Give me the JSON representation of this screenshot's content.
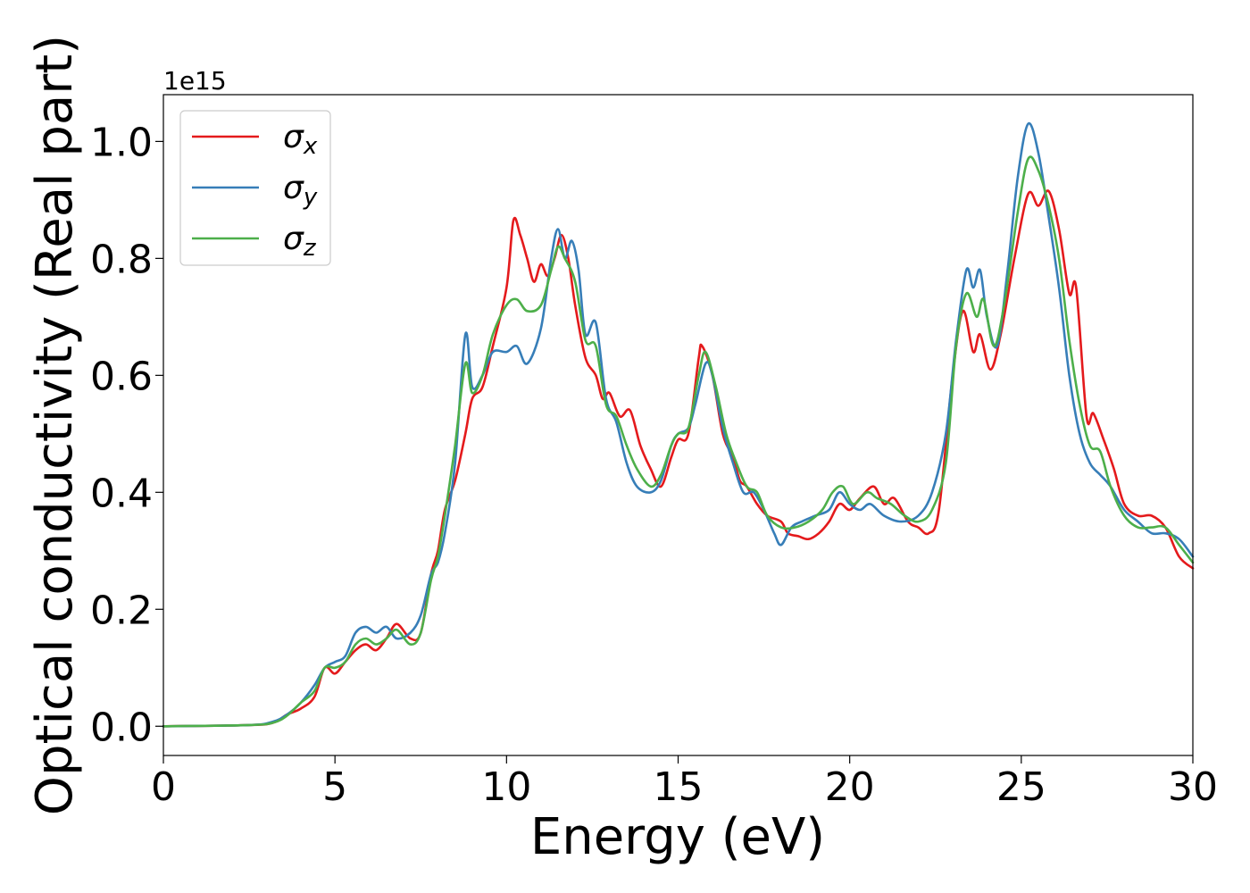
{
  "chart_data": {
    "type": "line",
    "xlabel": "Energy (eV)",
    "ylabel": "Optical conductivity (Real part)",
    "y_offset_text": "1e15",
    "xlim": [
      0,
      30
    ],
    "ylim": [
      -0.05,
      1.08
    ],
    "y_scale_note": "values in units of 1e15",
    "x_ticks": [
      0,
      5,
      10,
      15,
      20,
      25,
      30
    ],
    "x_tick_labels": [
      "0",
      "5",
      "10",
      "15",
      "20",
      "25",
      "30"
    ],
    "y_ticks": [
      0.0,
      0.2,
      0.4,
      0.6,
      0.8,
      1.0
    ],
    "y_tick_labels": [
      "0.0",
      "0.2",
      "0.4",
      "0.6",
      "0.8",
      "1.0"
    ],
    "grid": false,
    "legend_position": "top-left",
    "series": [
      {
        "name": "σx",
        "base": "σ",
        "sub": "x",
        "color": "#e41a1c",
        "points": [
          [
            0,
            0
          ],
          [
            2.5,
            0.002
          ],
          [
            3.2,
            0.006
          ],
          [
            3.6,
            0.02
          ],
          [
            4.0,
            0.03
          ],
          [
            4.4,
            0.05
          ],
          [
            4.7,
            0.1
          ],
          [
            5.0,
            0.09
          ],
          [
            5.3,
            0.11
          ],
          [
            5.6,
            0.13
          ],
          [
            5.9,
            0.14
          ],
          [
            6.2,
            0.13
          ],
          [
            6.5,
            0.15
          ],
          [
            6.8,
            0.175
          ],
          [
            7.2,
            0.15
          ],
          [
            7.5,
            0.16
          ],
          [
            7.8,
            0.26
          ],
          [
            8.0,
            0.3
          ],
          [
            8.2,
            0.37
          ],
          [
            8.5,
            0.42
          ],
          [
            8.8,
            0.5
          ],
          [
            9.0,
            0.56
          ],
          [
            9.3,
            0.58
          ],
          [
            9.6,
            0.65
          ],
          [
            10.0,
            0.75
          ],
          [
            10.2,
            0.865
          ],
          [
            10.4,
            0.84
          ],
          [
            10.6,
            0.8
          ],
          [
            10.8,
            0.76
          ],
          [
            11.0,
            0.79
          ],
          [
            11.2,
            0.77
          ],
          [
            11.4,
            0.8
          ],
          [
            11.6,
            0.84
          ],
          [
            11.8,
            0.8
          ],
          [
            12.0,
            0.72
          ],
          [
            12.3,
            0.63
          ],
          [
            12.6,
            0.6
          ],
          [
            12.8,
            0.56
          ],
          [
            13.0,
            0.57
          ],
          [
            13.3,
            0.53
          ],
          [
            13.6,
            0.54
          ],
          [
            13.9,
            0.48
          ],
          [
            14.2,
            0.44
          ],
          [
            14.5,
            0.41
          ],
          [
            14.8,
            0.46
          ],
          [
            15.0,
            0.49
          ],
          [
            15.3,
            0.5
          ],
          [
            15.6,
            0.63
          ],
          [
            15.7,
            0.65
          ],
          [
            16.0,
            0.6
          ],
          [
            16.3,
            0.5
          ],
          [
            16.6,
            0.46
          ],
          [
            16.8,
            0.42
          ],
          [
            17.0,
            0.41
          ],
          [
            17.3,
            0.38
          ],
          [
            17.6,
            0.36
          ],
          [
            18.0,
            0.35
          ],
          [
            18.2,
            0.33
          ],
          [
            18.5,
            0.325
          ],
          [
            18.8,
            0.32
          ],
          [
            19.1,
            0.33
          ],
          [
            19.4,
            0.35
          ],
          [
            19.7,
            0.38
          ],
          [
            20.0,
            0.37
          ],
          [
            20.3,
            0.39
          ],
          [
            20.7,
            0.41
          ],
          [
            21.0,
            0.38
          ],
          [
            21.3,
            0.39
          ],
          [
            21.7,
            0.35
          ],
          [
            22.0,
            0.34
          ],
          [
            22.3,
            0.33
          ],
          [
            22.6,
            0.37
          ],
          [
            23.0,
            0.6
          ],
          [
            23.3,
            0.71
          ],
          [
            23.6,
            0.64
          ],
          [
            23.8,
            0.67
          ],
          [
            24.1,
            0.61
          ],
          [
            24.4,
            0.67
          ],
          [
            24.8,
            0.8
          ],
          [
            25.2,
            0.91
          ],
          [
            25.5,
            0.89
          ],
          [
            25.8,
            0.915
          ],
          [
            26.1,
            0.85
          ],
          [
            26.4,
            0.74
          ],
          [
            26.6,
            0.75
          ],
          [
            26.9,
            0.53
          ],
          [
            27.1,
            0.535
          ],
          [
            27.4,
            0.49
          ],
          [
            27.7,
            0.44
          ],
          [
            28.0,
            0.38
          ],
          [
            28.4,
            0.36
          ],
          [
            28.8,
            0.36
          ],
          [
            29.2,
            0.34
          ],
          [
            29.6,
            0.29
          ],
          [
            30,
            0.27
          ]
        ]
      },
      {
        "name": "σy",
        "base": "σ",
        "sub": "y",
        "color": "#377eb8",
        "points": [
          [
            0,
            0
          ],
          [
            2.5,
            0.002
          ],
          [
            3.2,
            0.008
          ],
          [
            3.6,
            0.02
          ],
          [
            4.0,
            0.04
          ],
          [
            4.4,
            0.07
          ],
          [
            4.7,
            0.1
          ],
          [
            5.0,
            0.11
          ],
          [
            5.3,
            0.12
          ],
          [
            5.6,
            0.16
          ],
          [
            5.9,
            0.17
          ],
          [
            6.2,
            0.16
          ],
          [
            6.5,
            0.17
          ],
          [
            6.8,
            0.15
          ],
          [
            7.2,
            0.16
          ],
          [
            7.5,
            0.19
          ],
          [
            7.8,
            0.26
          ],
          [
            8.0,
            0.28
          ],
          [
            8.2,
            0.33
          ],
          [
            8.5,
            0.45
          ],
          [
            8.8,
            0.67
          ],
          [
            9.0,
            0.58
          ],
          [
            9.3,
            0.6
          ],
          [
            9.6,
            0.64
          ],
          [
            10.0,
            0.64
          ],
          [
            10.3,
            0.65
          ],
          [
            10.6,
            0.62
          ],
          [
            11.0,
            0.68
          ],
          [
            11.3,
            0.8
          ],
          [
            11.5,
            0.85
          ],
          [
            11.7,
            0.8
          ],
          [
            11.9,
            0.83
          ],
          [
            12.1,
            0.78
          ],
          [
            12.3,
            0.67
          ],
          [
            12.6,
            0.69
          ],
          [
            12.9,
            0.56
          ],
          [
            13.2,
            0.52
          ],
          [
            13.5,
            0.45
          ],
          [
            13.8,
            0.41
          ],
          [
            14.2,
            0.4
          ],
          [
            14.5,
            0.42
          ],
          [
            14.8,
            0.48
          ],
          [
            15.0,
            0.5
          ],
          [
            15.3,
            0.51
          ],
          [
            15.5,
            0.55
          ],
          [
            15.8,
            0.62
          ],
          [
            16.0,
            0.6
          ],
          [
            16.3,
            0.51
          ],
          [
            16.6,
            0.45
          ],
          [
            16.9,
            0.4
          ],
          [
            17.2,
            0.4
          ],
          [
            17.5,
            0.37
          ],
          [
            17.8,
            0.33
          ],
          [
            18.0,
            0.31
          ],
          [
            18.3,
            0.34
          ],
          [
            18.6,
            0.35
          ],
          [
            19.0,
            0.36
          ],
          [
            19.4,
            0.37
          ],
          [
            19.7,
            0.4
          ],
          [
            20.0,
            0.38
          ],
          [
            20.3,
            0.37
          ],
          [
            20.6,
            0.38
          ],
          [
            21.0,
            0.36
          ],
          [
            21.5,
            0.35
          ],
          [
            22.0,
            0.36
          ],
          [
            22.4,
            0.4
          ],
          [
            22.8,
            0.5
          ],
          [
            23.1,
            0.66
          ],
          [
            23.4,
            0.78
          ],
          [
            23.6,
            0.75
          ],
          [
            23.8,
            0.78
          ],
          [
            24.0,
            0.7
          ],
          [
            24.3,
            0.65
          ],
          [
            24.6,
            0.78
          ],
          [
            24.9,
            0.94
          ],
          [
            25.2,
            1.03
          ],
          [
            25.5,
            0.98
          ],
          [
            25.8,
            0.87
          ],
          [
            26.1,
            0.75
          ],
          [
            26.4,
            0.6
          ],
          [
            26.7,
            0.5
          ],
          [
            27.0,
            0.45
          ],
          [
            27.3,
            0.43
          ],
          [
            27.6,
            0.41
          ],
          [
            28.0,
            0.37
          ],
          [
            28.4,
            0.35
          ],
          [
            28.8,
            0.33
          ],
          [
            29.2,
            0.33
          ],
          [
            29.6,
            0.32
          ],
          [
            30,
            0.29
          ]
        ]
      },
      {
        "name": "σz",
        "base": "σ",
        "sub": "z",
        "color": "#4daf4a",
        "points": [
          [
            0,
            0
          ],
          [
            2.5,
            0.002
          ],
          [
            3.2,
            0.006
          ],
          [
            3.6,
            0.018
          ],
          [
            4.0,
            0.04
          ],
          [
            4.4,
            0.06
          ],
          [
            4.7,
            0.1
          ],
          [
            5.0,
            0.1
          ],
          [
            5.3,
            0.11
          ],
          [
            5.6,
            0.14
          ],
          [
            5.9,
            0.15
          ],
          [
            6.2,
            0.14
          ],
          [
            6.5,
            0.15
          ],
          [
            6.8,
            0.165
          ],
          [
            7.2,
            0.14
          ],
          [
            7.5,
            0.16
          ],
          [
            7.8,
            0.25
          ],
          [
            8.0,
            0.29
          ],
          [
            8.2,
            0.36
          ],
          [
            8.5,
            0.48
          ],
          [
            8.8,
            0.62
          ],
          [
            9.0,
            0.57
          ],
          [
            9.3,
            0.6
          ],
          [
            9.6,
            0.67
          ],
          [
            10.0,
            0.72
          ],
          [
            10.3,
            0.73
          ],
          [
            10.6,
            0.71
          ],
          [
            11.0,
            0.72
          ],
          [
            11.3,
            0.78
          ],
          [
            11.5,
            0.82
          ],
          [
            11.7,
            0.8
          ],
          [
            12.0,
            0.76
          ],
          [
            12.3,
            0.66
          ],
          [
            12.6,
            0.65
          ],
          [
            12.9,
            0.55
          ],
          [
            13.2,
            0.53
          ],
          [
            13.5,
            0.48
          ],
          [
            13.8,
            0.44
          ],
          [
            14.2,
            0.41
          ],
          [
            14.5,
            0.43
          ],
          [
            14.8,
            0.48
          ],
          [
            15.0,
            0.5
          ],
          [
            15.3,
            0.51
          ],
          [
            15.6,
            0.6
          ],
          [
            15.8,
            0.64
          ],
          [
            16.1,
            0.58
          ],
          [
            16.4,
            0.5
          ],
          [
            16.7,
            0.45
          ],
          [
            17.0,
            0.41
          ],
          [
            17.3,
            0.4
          ],
          [
            17.6,
            0.36
          ],
          [
            18.0,
            0.34
          ],
          [
            18.4,
            0.34
          ],
          [
            18.8,
            0.35
          ],
          [
            19.2,
            0.37
          ],
          [
            19.5,
            0.4
          ],
          [
            19.8,
            0.41
          ],
          [
            20.1,
            0.38
          ],
          [
            20.5,
            0.4
          ],
          [
            20.8,
            0.39
          ],
          [
            21.2,
            0.38
          ],
          [
            21.6,
            0.36
          ],
          [
            22.0,
            0.35
          ],
          [
            22.4,
            0.37
          ],
          [
            22.8,
            0.45
          ],
          [
            23.1,
            0.65
          ],
          [
            23.4,
            0.74
          ],
          [
            23.7,
            0.7
          ],
          [
            23.9,
            0.73
          ],
          [
            24.2,
            0.65
          ],
          [
            24.5,
            0.72
          ],
          [
            24.9,
            0.88
          ],
          [
            25.2,
            0.97
          ],
          [
            25.5,
            0.95
          ],
          [
            25.8,
            0.89
          ],
          [
            26.1,
            0.8
          ],
          [
            26.4,
            0.66
          ],
          [
            26.7,
            0.55
          ],
          [
            27.0,
            0.48
          ],
          [
            27.3,
            0.47
          ],
          [
            27.6,
            0.41
          ],
          [
            28.0,
            0.36
          ],
          [
            28.4,
            0.34
          ],
          [
            28.8,
            0.34
          ],
          [
            29.2,
            0.34
          ],
          [
            29.6,
            0.31
          ],
          [
            30,
            0.28
          ]
        ]
      }
    ]
  }
}
